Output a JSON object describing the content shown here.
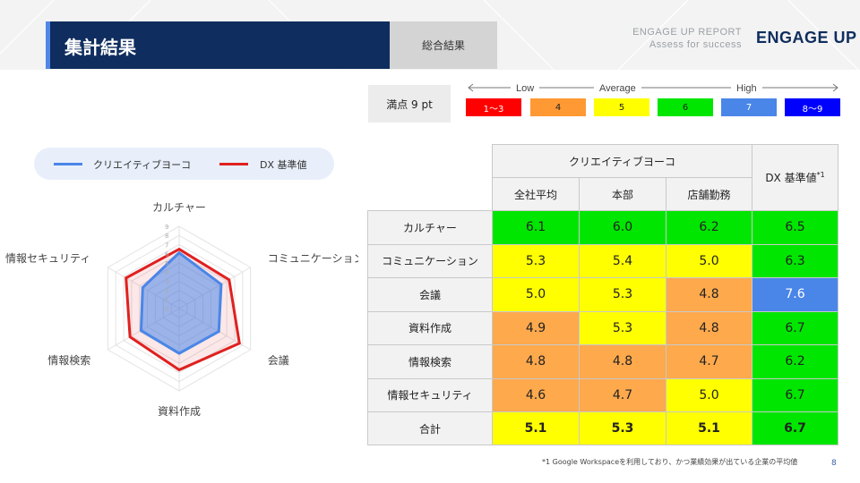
{
  "header": {
    "title": "集計結果",
    "subtitle": "総合結果",
    "report_line1": "ENGAGE UP REPORT",
    "report_line2": "Assess for success",
    "logo": "ENGAGE UP"
  },
  "scale": {
    "max_label": "満点 9 pt",
    "low": "Low",
    "average": "Average",
    "high": "High",
    "bins": [
      {
        "label": "1〜3",
        "color": "#ff0000",
        "text_color": "#ffffff"
      },
      {
        "label": "4",
        "color": "#ff9933",
        "text_color": "#222222"
      },
      {
        "label": "5",
        "color": "#ffff00",
        "text_color": "#222222"
      },
      {
        "label": "6",
        "color": "#00e600",
        "text_color": "#222222"
      },
      {
        "label": "7",
        "color": "#4a86e8",
        "text_color": "#ffffff"
      },
      {
        "label": "8〜9",
        "color": "#0000ff",
        "text_color": "#ffffff"
      }
    ]
  },
  "legend": {
    "company": "クリエイティブヨーコ",
    "benchmark": "DX 基準値",
    "company_color": "#4a86e8",
    "benchmark_color": "#e02020"
  },
  "chart_data": {
    "type": "radar",
    "categories": [
      "カルチャー",
      "コミュニケーション",
      "会議",
      "資料作成",
      "情報検索",
      "情報セキュリティ"
    ],
    "series": [
      {
        "name": "クリエイティブヨーコ",
        "values": [
          6.1,
          5.3,
          5.0,
          4.9,
          4.8,
          4.6
        ]
      },
      {
        "name": "DX 基準値",
        "values": [
          6.5,
          6.3,
          7.6,
          6.7,
          6.2,
          6.7
        ]
      }
    ],
    "ylim": [
      0,
      9
    ],
    "ticks": [
      "0",
      "1",
      "2",
      "3",
      "4",
      "5",
      "6",
      "7",
      "8",
      "9"
    ],
    "legend_position": "top"
  },
  "table": {
    "group_header": "クリエイティブヨーコ",
    "benchmark_header": "DX 基準値",
    "benchmark_note": "*1",
    "columns": [
      "全社平均",
      "本部",
      "店舗勤務"
    ],
    "rows": [
      {
        "label": "カルチャー",
        "values": [
          "6.1",
          "6.0",
          "6.2"
        ],
        "colors": [
          "#00e600",
          "#00e600",
          "#00e600"
        ],
        "dx": "6.5",
        "dx_color": "#00e600",
        "dx_text": "#222222"
      },
      {
        "label": "コミュニケーション",
        "values": [
          "5.3",
          "5.4",
          "5.0"
        ],
        "colors": [
          "#ffff00",
          "#ffff00",
          "#ffff00"
        ],
        "dx": "6.3",
        "dx_color": "#00e600",
        "dx_text": "#222222"
      },
      {
        "label": "会議",
        "values": [
          "5.0",
          "5.3",
          "4.8"
        ],
        "colors": [
          "#ffff00",
          "#ffff00",
          "#ffa94d"
        ],
        "dx": "7.6",
        "dx_color": "#4a86e8",
        "dx_text": "#ffffff"
      },
      {
        "label": "資料作成",
        "values": [
          "4.9",
          "5.3",
          "4.8"
        ],
        "colors": [
          "#ffa94d",
          "#ffff00",
          "#ffa94d"
        ],
        "dx": "6.7",
        "dx_color": "#00e600",
        "dx_text": "#222222"
      },
      {
        "label": "情報検索",
        "values": [
          "4.8",
          "4.8",
          "4.7"
        ],
        "colors": [
          "#ffa94d",
          "#ffa94d",
          "#ffa94d"
        ],
        "dx": "6.2",
        "dx_color": "#00e600",
        "dx_text": "#222222"
      },
      {
        "label": "情報セキュリティ",
        "values": [
          "4.6",
          "4.7",
          "5.0"
        ],
        "colors": [
          "#ffa94d",
          "#ffa94d",
          "#ffff00"
        ],
        "dx": "6.7",
        "dx_color": "#00e600",
        "dx_text": "#222222"
      }
    ],
    "total": {
      "label": "合計",
      "values": [
        "5.1",
        "5.3",
        "5.1"
      ],
      "colors": [
        "#ffff00",
        "#ffff00",
        "#ffff00"
      ],
      "dx": "6.7",
      "dx_color": "#00e600",
      "dx_text": "#222222"
    }
  },
  "footnote": "*1 Google Workspaceを利用しており、かつ業績効果が出ている企業の平均値",
  "page_number": "8"
}
